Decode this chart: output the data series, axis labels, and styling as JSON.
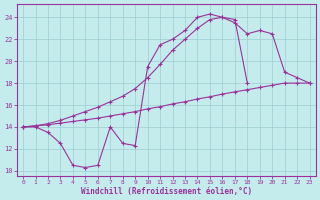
{
  "xlabel": "Windchill (Refroidissement éolien,°C)",
  "xlim": [
    -0.5,
    23.5
  ],
  "ylim": [
    9.5,
    25.2
  ],
  "yticks": [
    10,
    12,
    14,
    16,
    18,
    20,
    22,
    24
  ],
  "xticks": [
    0,
    1,
    2,
    3,
    4,
    5,
    6,
    7,
    8,
    9,
    10,
    11,
    12,
    13,
    14,
    15,
    16,
    17,
    18,
    19,
    20,
    21,
    22,
    23
  ],
  "bg_color": "#c5eced",
  "grid_color": "#9ecdd0",
  "line_color": "#993399",
  "line1_x": [
    0,
    1,
    2,
    3,
    4,
    5,
    6,
    7,
    8,
    9,
    10,
    11,
    12,
    13,
    14,
    15,
    16,
    17,
    18
  ],
  "line1_y": [
    14.0,
    14.0,
    13.5,
    12.5,
    10.5,
    10.3,
    10.5,
    14.0,
    12.5,
    12.3,
    19.5,
    21.5,
    22.0,
    22.8,
    24.0,
    24.3,
    24.0,
    23.8,
    18.0
  ],
  "line2_x": [
    0,
    1,
    2,
    3,
    4,
    5,
    6,
    7,
    8,
    9,
    10,
    11,
    12,
    13,
    14,
    15,
    16,
    17,
    18,
    19,
    20,
    21,
    22,
    23
  ],
  "line2_y": [
    14.0,
    14.1,
    14.2,
    14.35,
    14.5,
    14.65,
    14.8,
    15.0,
    15.2,
    15.4,
    15.65,
    15.85,
    16.1,
    16.3,
    16.55,
    16.75,
    17.0,
    17.2,
    17.4,
    17.6,
    17.8,
    18.0,
    18.0,
    18.0
  ],
  "line3_x": [
    0,
    1,
    2,
    3,
    4,
    5,
    6,
    7,
    8,
    9,
    10,
    11,
    12,
    13,
    14,
    15,
    16,
    17,
    18,
    19,
    20,
    21,
    22,
    23
  ],
  "line3_y": [
    14.0,
    14.1,
    14.3,
    14.6,
    15.0,
    15.4,
    15.8,
    16.3,
    16.8,
    17.5,
    18.5,
    19.7,
    21.0,
    22.0,
    23.0,
    23.8,
    24.0,
    23.5,
    22.5,
    22.8,
    22.5,
    19.0,
    18.5,
    18.0
  ]
}
